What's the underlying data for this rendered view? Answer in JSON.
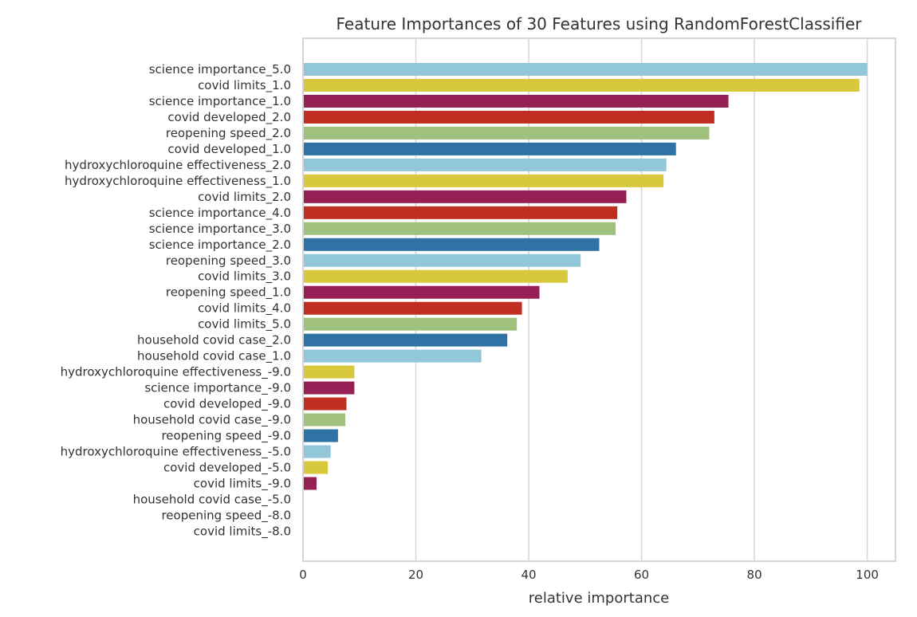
{
  "chart_data": {
    "type": "bar",
    "orientation": "horizontal",
    "title": "Feature Importances of 30 Features using RandomForestClassifier",
    "xlabel": "relative importance",
    "ylabel": "",
    "xlim": [
      0,
      105
    ],
    "xticks": [
      0,
      20,
      40,
      60,
      80,
      100
    ],
    "grid": true,
    "legend": "none",
    "colors": [
      "#92c6d9",
      "#d8c83c",
      "#961f56",
      "#bf2e20",
      "#a0c17e",
      "#2e73a3"
    ],
    "categories": [
      "science importance_5.0",
      "covid limits_1.0",
      "science importance_1.0",
      "covid developed_2.0",
      "reopening speed_2.0",
      "covid developed_1.0",
      "hydroxychloroquine effectiveness_2.0",
      "hydroxychloroquine effectiveness_1.0",
      "covid limits_2.0",
      "science importance_4.0",
      "science importance_3.0",
      "science importance_2.0",
      "reopening speed_3.0",
      "covid limits_3.0",
      "reopening speed_1.0",
      "covid limits_4.0",
      "covid limits_5.0",
      "household covid case_2.0",
      "household covid case_1.0",
      "hydroxychloroquine effectiveness_-9.0",
      "science importance_-9.0",
      "covid developed_-9.0",
      "household covid case_-9.0",
      "reopening speed_-9.0",
      "hydroxychloroquine effectiveness_-5.0",
      "covid developed_-5.0",
      "covid limits_-9.0",
      "household covid case_-5.0",
      "reopening speed_-8.0",
      "covid limits_-8.0"
    ],
    "values": [
      100,
      98.6,
      75.4,
      72.9,
      72.0,
      66.1,
      64.4,
      63.9,
      57.3,
      55.7,
      55.4,
      52.5,
      49.2,
      46.9,
      41.9,
      38.8,
      37.9,
      36.2,
      31.6,
      9.1,
      9.1,
      7.7,
      7.5,
      6.2,
      4.9,
      4.4,
      2.4,
      0,
      0,
      0
    ]
  }
}
